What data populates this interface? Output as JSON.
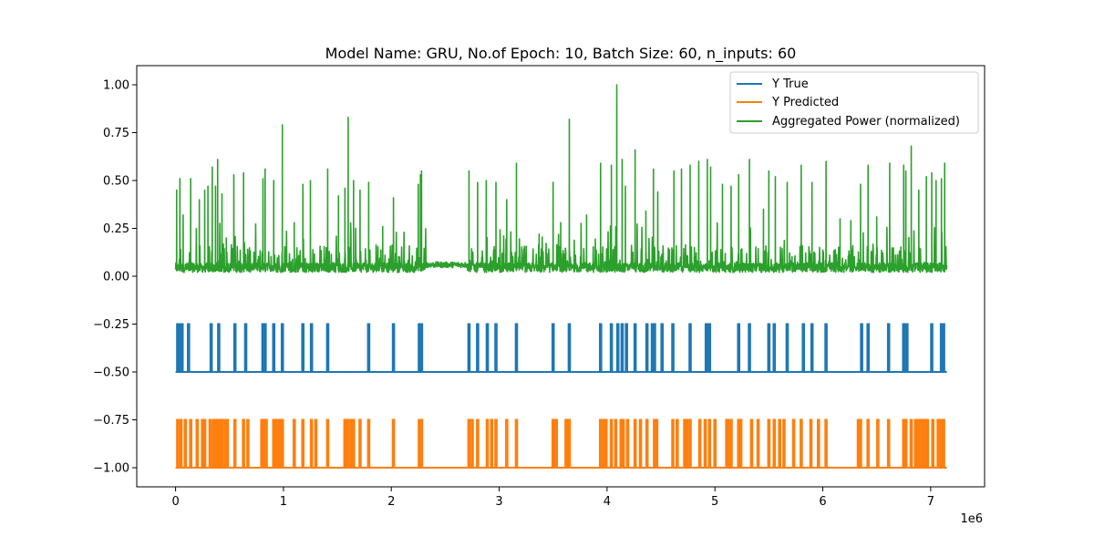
{
  "chart_data": {
    "type": "line",
    "title": "Model Name: GRU, No.of Epoch: 10, Batch Size: 60, n_inputs: 60",
    "xlabel": "",
    "ylabel": "",
    "x_offset_label": "1e6",
    "xlim": [
      -0.36,
      7.5
    ],
    "ylim": [
      -1.1,
      1.1
    ],
    "x_ticks": [
      0,
      1,
      2,
      3,
      4,
      5,
      6,
      7
    ],
    "x_tick_labels": [
      "0",
      "1",
      "2",
      "3",
      "4",
      "5",
      "6",
      "7"
    ],
    "y_ticks": [
      1.0,
      0.75,
      0.5,
      0.25,
      0.0,
      -0.25,
      -0.5,
      -0.75,
      -1.0
    ],
    "y_tick_labels": [
      "1.00",
      "0.75",
      "0.50",
      "0.25",
      "0.00",
      "−0.25",
      "−0.50",
      "−0.75",
      "−1.00"
    ],
    "legend_position": "top-right",
    "series": [
      {
        "name": "Y True",
        "color": "#1f77b4",
        "kind": "binary",
        "baseline": -0.5,
        "high": -0.25,
        "x_range": [
          0,
          7.15
        ],
        "events": [
          0.02,
          0.04,
          0.06,
          0.12,
          0.33,
          0.4,
          0.55,
          0.65,
          0.81,
          0.82,
          0.83,
          0.91,
          0.99,
          1.18,
          1.26,
          1.41,
          1.79,
          2.02,
          2.26,
          2.27,
          2.28,
          2.72,
          2.8,
          2.89,
          2.97,
          3.16,
          3.5,
          3.65,
          3.94,
          4.04,
          4.1,
          4.14,
          4.18,
          4.26,
          4.37,
          4.42,
          4.44,
          4.51,
          4.61,
          4.77,
          4.92,
          4.95,
          5.22,
          5.32,
          5.5,
          5.55,
          5.67,
          5.82,
          5.9,
          6.03,
          6.36,
          6.42,
          6.61,
          6.75,
          6.78,
          7.01,
          7.1,
          7.12
        ]
      },
      {
        "name": "Y Predicted",
        "color": "#ff7f0e",
        "kind": "binary",
        "baseline": -1.0,
        "high": -0.75,
        "x_range": [
          0,
          7.15
        ],
        "events": [
          0.02,
          0.05,
          0.09,
          0.14,
          0.2,
          0.25,
          0.27,
          0.32,
          0.35,
          0.37,
          0.39,
          0.41,
          0.43,
          0.46,
          0.48,
          0.55,
          0.63,
          0.67,
          0.8,
          0.82,
          0.84,
          0.91,
          0.93,
          0.96,
          0.99,
          1.1,
          1.18,
          1.26,
          1.3,
          1.41,
          1.57,
          1.59,
          1.6,
          1.63,
          1.65,
          1.71,
          1.79,
          2.02,
          2.26,
          2.27,
          2.28,
          2.72,
          2.75,
          2.8,
          2.89,
          2.93,
          2.97,
          3.07,
          3.16,
          3.5,
          3.53,
          3.62,
          3.64,
          3.65,
          3.94,
          3.97,
          3.99,
          4.04,
          4.08,
          4.13,
          4.15,
          4.19,
          4.26,
          4.31,
          4.37,
          4.44,
          4.46,
          4.61,
          4.65,
          4.72,
          4.74,
          4.77,
          4.86,
          4.91,
          4.95,
          5.0,
          5.11,
          5.12,
          5.15,
          5.22,
          5.24,
          5.34,
          5.4,
          5.5,
          5.55,
          5.6,
          5.64,
          5.73,
          5.8,
          5.89,
          5.96,
          6.03,
          6.33,
          6.35,
          6.42,
          6.51,
          6.61,
          6.75,
          6.77,
          6.82,
          6.86,
          6.89,
          6.92,
          6.94,
          6.97,
          7.02,
          7.07,
          7.1,
          7.12
        ]
      },
      {
        "name": "Aggregated Power (normalized)",
        "color": "#2ca02c",
        "kind": "signal",
        "x_range": [
          0,
          7.15
        ],
        "baseline_level": 0.02,
        "peaks": [
          [
            0.01,
            0.45
          ],
          [
            0.04,
            0.51
          ],
          [
            0.07,
            0.32
          ],
          [
            0.14,
            0.51
          ],
          [
            0.22,
            0.4
          ],
          [
            0.27,
            0.45
          ],
          [
            0.3,
            0.47
          ],
          [
            0.34,
            0.57
          ],
          [
            0.37,
            0.47
          ],
          [
            0.39,
            0.61
          ],
          [
            0.43,
            0.43
          ],
          [
            0.47,
            0.2
          ],
          [
            0.54,
            0.53
          ],
          [
            0.63,
            0.54
          ],
          [
            0.81,
            0.51
          ],
          [
            0.83,
            0.56
          ],
          [
            0.91,
            0.5
          ],
          [
            0.99,
            0.79
          ],
          [
            1.1,
            0.28
          ],
          [
            1.18,
            0.48
          ],
          [
            1.25,
            0.5
          ],
          [
            1.41,
            0.56
          ],
          [
            1.51,
            0.42
          ],
          [
            1.57,
            0.46
          ],
          [
            1.6,
            0.83
          ],
          [
            1.65,
            0.5
          ],
          [
            1.71,
            0.45
          ],
          [
            1.79,
            0.49
          ],
          [
            1.92,
            0.26
          ],
          [
            2.02,
            0.41
          ],
          [
            2.25,
            0.48
          ],
          [
            2.27,
            0.53
          ],
          [
            2.28,
            0.55
          ],
          [
            2.72,
            0.55
          ],
          [
            2.8,
            0.49
          ],
          [
            2.88,
            0.5
          ],
          [
            2.97,
            0.49
          ],
          [
            3.07,
            0.4
          ],
          [
            3.16,
            0.59
          ],
          [
            3.37,
            0.22
          ],
          [
            3.5,
            0.49
          ],
          [
            3.57,
            0.28
          ],
          [
            3.65,
            0.82
          ],
          [
            3.81,
            0.32
          ],
          [
            3.94,
            0.59
          ],
          [
            4.04,
            0.58
          ],
          [
            4.09,
            1.0
          ],
          [
            4.14,
            0.61
          ],
          [
            4.17,
            0.47
          ],
          [
            4.26,
            0.66
          ],
          [
            4.36,
            0.34
          ],
          [
            4.43,
            0.56
          ],
          [
            4.47,
            0.44
          ],
          [
            4.62,
            0.55
          ],
          [
            4.69,
            0.56
          ],
          [
            4.77,
            0.58
          ],
          [
            4.85,
            0.6
          ],
          [
            4.93,
            0.61
          ],
          [
            4.96,
            0.57
          ],
          [
            5.07,
            0.48
          ],
          [
            5.15,
            0.47
          ],
          [
            5.22,
            0.53
          ],
          [
            5.32,
            0.61
          ],
          [
            5.45,
            0.35
          ],
          [
            5.5,
            0.55
          ],
          [
            5.56,
            0.52
          ],
          [
            5.67,
            0.49
          ],
          [
            5.8,
            0.58
          ],
          [
            5.9,
            0.49
          ],
          [
            6.03,
            0.6
          ],
          [
            6.16,
            0.3
          ],
          [
            6.26,
            0.29
          ],
          [
            6.35,
            0.48
          ],
          [
            6.42,
            0.58
          ],
          [
            6.5,
            0.31
          ],
          [
            6.62,
            0.59
          ],
          [
            6.75,
            0.58
          ],
          [
            6.77,
            0.55
          ],
          [
            6.82,
            0.68
          ],
          [
            6.89,
            0.45
          ],
          [
            6.96,
            0.52
          ],
          [
            7.01,
            0.54
          ],
          [
            7.05,
            0.5
          ],
          [
            7.1,
            0.51
          ],
          [
            7.13,
            0.59
          ]
        ],
        "flat_segment": {
          "x": [
            2.32,
            2.7
          ],
          "level": 0.06
        }
      }
    ]
  }
}
